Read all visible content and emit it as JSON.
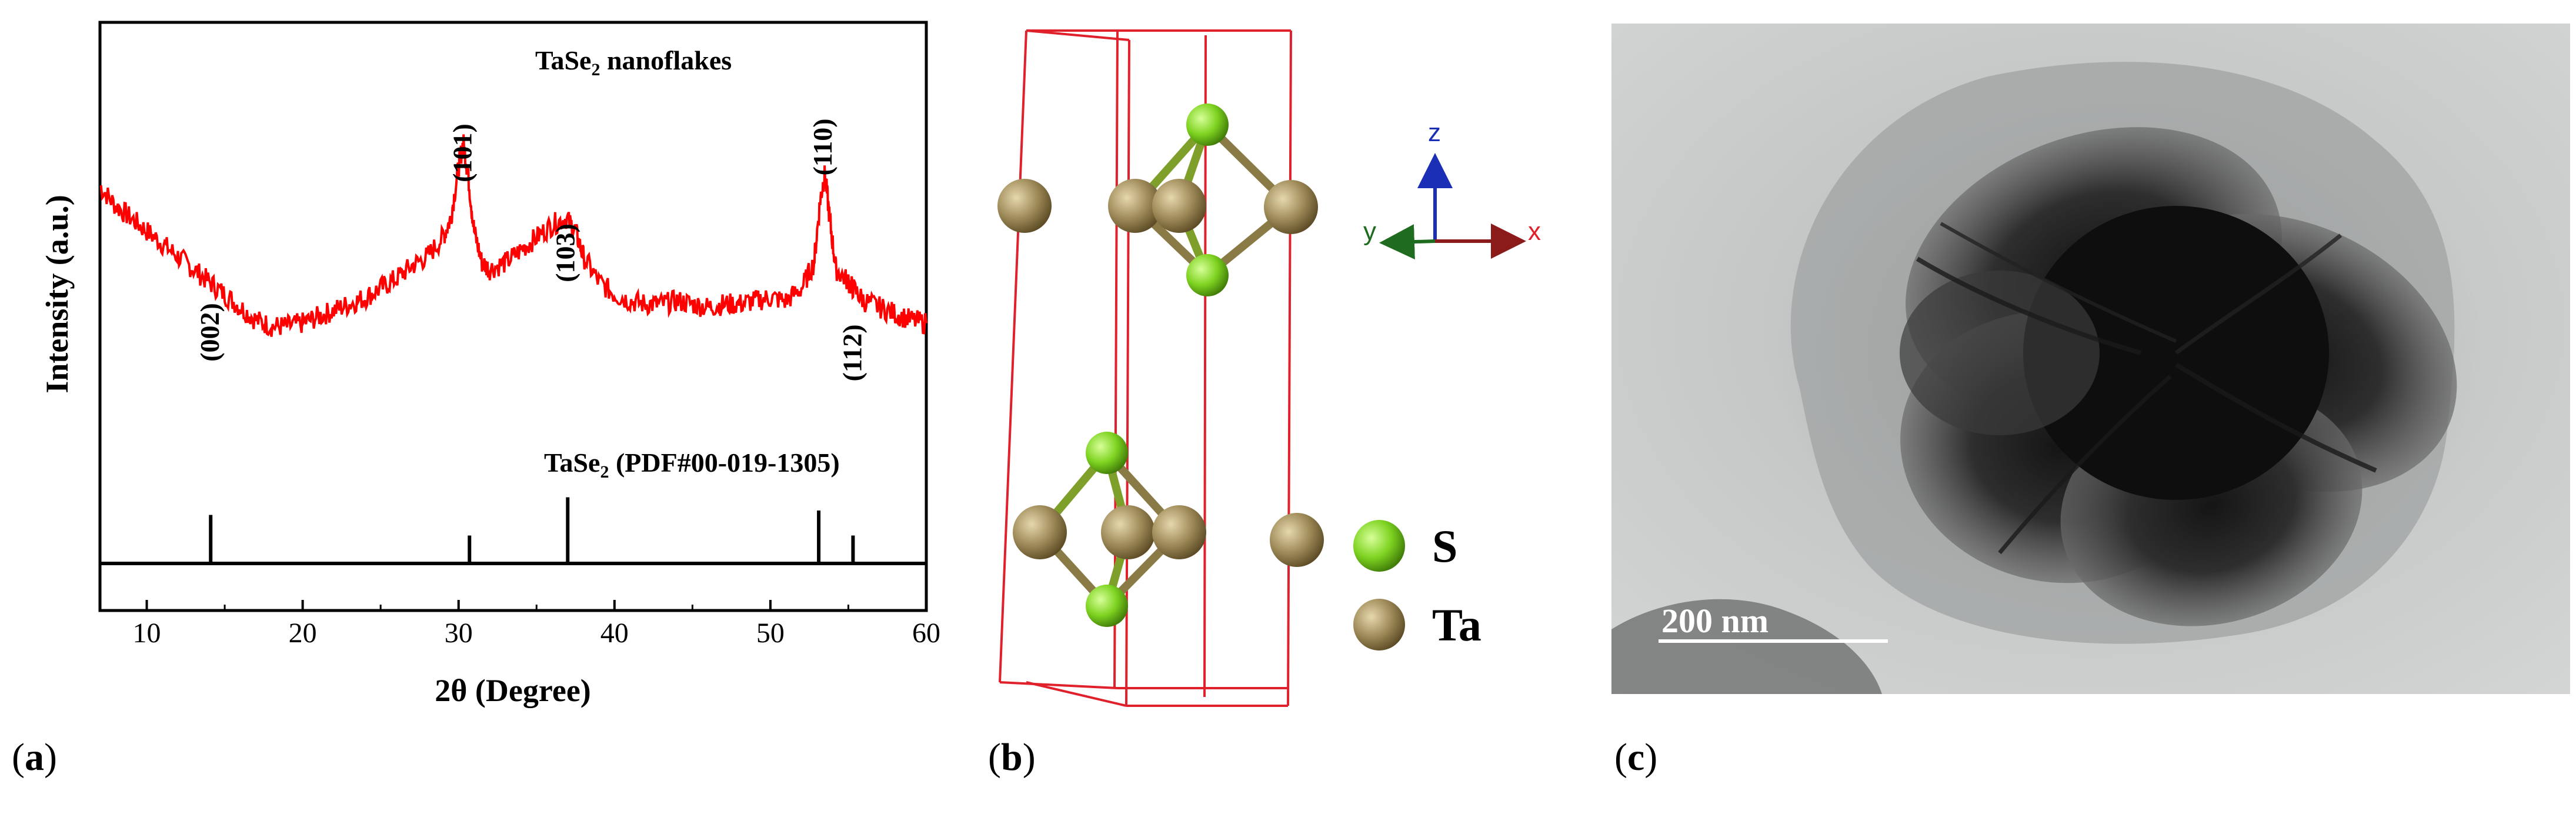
{
  "panel_a": {
    "caption_letter": "a",
    "sample_label_prefix": "TaSe",
    "sample_label_sub": "2",
    "sample_label_suffix": " nanoflakes",
    "ref_label_prefix": "TaSe",
    "ref_label_sub": "2",
    "ref_label_suffix": " (PDF#00-019-1305)",
    "xlabel": "2θ (Degree)",
    "ylabel": "Intensity (a.u.)",
    "x_ticks": [
      "10",
      "20",
      "30",
      "40",
      "50",
      "60"
    ],
    "peak_labels": [
      {
        "text": "(002)",
        "x": 14.1
      },
      {
        "text": "(101)",
        "x": 30.3
      },
      {
        "text": "(103)",
        "x": 36.9
      },
      {
        "text": "(110)",
        "x": 53.4
      },
      {
        "text": "(112)",
        "x": 55.3
      }
    ],
    "colors": {
      "pattern": "#ff0000",
      "reference": "#000000"
    }
  },
  "chart_data": {
    "type": "line",
    "xlabel": "2θ (Degree)",
    "ylabel": "Intensity (a.u.)",
    "xlim": [
      7,
      60
    ],
    "series": [
      {
        "name": "TaSe2 nanoflakes",
        "x": [
          7,
          8,
          9,
          10,
          11,
          12,
          13,
          14,
          15,
          16,
          17,
          18,
          19,
          20,
          21,
          22,
          23,
          24,
          25,
          26,
          27,
          28,
          29,
          29.5,
          30,
          30.3,
          30.6,
          31,
          31.5,
          32,
          33,
          34,
          35,
          36,
          36.9,
          37.5,
          38,
          39,
          40,
          41,
          42,
          43,
          44,
          45,
          46,
          47,
          48,
          49,
          50,
          51,
          52,
          52.8,
          53.2,
          53.5,
          53.8,
          54.2,
          55,
          55.3,
          56,
          57,
          58,
          59,
          60
        ],
        "y": [
          82,
          76,
          72,
          68,
          64,
          60,
          56,
          52,
          48,
          44,
          40,
          38,
          38,
          39,
          41,
          43,
          45,
          47,
          50,
          53,
          57,
          60,
          66,
          72,
          88,
          96,
          86,
          68,
          58,
          56,
          58,
          62,
          66,
          70,
          72,
          68,
          60,
          52,
          48,
          46,
          45,
          45,
          46,
          45,
          44,
          45,
          45,
          46,
          47,
          46,
          50,
          58,
          78,
          86,
          72,
          56,
          52,
          50,
          46,
          44,
          42,
          40,
          39
        ]
      },
      {
        "name": "TaSe2 (PDF#00-019-1305)",
        "x": [
          14.1,
          30.7,
          37.0,
          53.1,
          55.3
        ],
        "y": [
          33,
          19,
          45,
          36,
          19
        ]
      }
    ]
  },
  "panel_b": {
    "caption_letter": "b",
    "axes": {
      "x": "x",
      "y": "y",
      "z": "z"
    },
    "legend": [
      {
        "label": "S",
        "color": "#7ed321"
      },
      {
        "label": "Ta",
        "color": "#a08c5a"
      }
    ]
  },
  "panel_c": {
    "caption_letter": "c",
    "scale_bar_label": "200 nm"
  }
}
